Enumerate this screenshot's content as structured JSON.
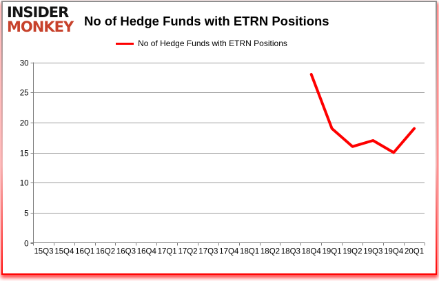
{
  "header": {
    "logo_line1": "INSIDER",
    "logo_line2": "MONKEY",
    "title": "No of Hedge Funds with ETRN Positions"
  },
  "legend": {
    "label": "No of Hedge Funds with ETRN Positions",
    "swatch_color": "#fe0000"
  },
  "chart_data": {
    "type": "line",
    "title": "No of Hedge Funds with ETRN Positions",
    "categories": [
      "15Q3",
      "15Q4",
      "16Q1",
      "16Q2",
      "16Q3",
      "16Q4",
      "17Q1",
      "17Q2",
      "17Q3",
      "17Q4",
      "18Q1",
      "18Q2",
      "18Q3",
      "18Q4",
      "19Q1",
      "19Q2",
      "19Q3",
      "19Q4",
      "20Q1"
    ],
    "series": [
      {
        "name": "No of Hedge Funds with ETRN Positions",
        "color": "#fe0000",
        "values": [
          null,
          null,
          null,
          null,
          null,
          null,
          null,
          null,
          null,
          null,
          null,
          null,
          null,
          28,
          19,
          16,
          17,
          15,
          19
        ]
      }
    ],
    "xlabel": "",
    "ylabel": "",
    "ylim": [
      0,
      30
    ],
    "ytick_step": 5,
    "yticks": [
      0,
      5,
      10,
      15,
      20,
      25,
      30
    ],
    "grid": true,
    "legend_position": "top-center"
  },
  "colors": {
    "logo_red": "#c7412b",
    "line_red": "#fe0000",
    "grid_gray": "#9c9c9c",
    "axis_gray": "#7f7f7f",
    "border_top_gray": "#8f8f8f",
    "border_bottom_red": "#ff0000",
    "background": "#ffffff"
  }
}
